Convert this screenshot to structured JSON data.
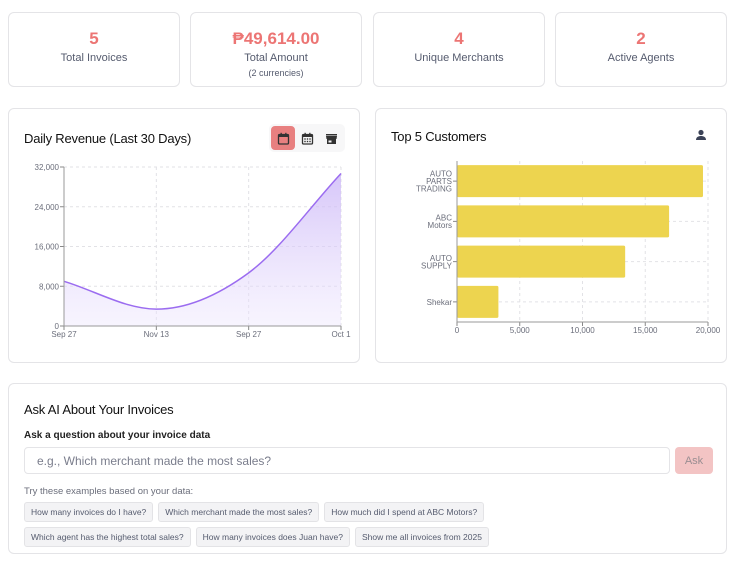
{
  "stats": [
    {
      "value": "5",
      "label": "Total Invoices"
    },
    {
      "value": "₱49,614.00",
      "label": "Total Amount",
      "sub": "(2 currencies)"
    },
    {
      "value": "4",
      "label": "Unique Merchants"
    },
    {
      "value": "2",
      "label": "Active Agents"
    }
  ],
  "revenue": {
    "title": "Daily Revenue (Last 30 Days)",
    "toggles": [
      {
        "icon": "calendar-day-icon",
        "active": true
      },
      {
        "icon": "calendar-month-icon",
        "active": false
      },
      {
        "icon": "store-icon",
        "active": false
      }
    ]
  },
  "customers": {
    "title": "Top 5 Customers",
    "icon": "user-icon"
  },
  "chart_data": [
    {
      "type": "area",
      "title": "Daily Revenue (Last 30 Days)",
      "categories": [
        "Sep 27",
        "Nov 13",
        "Sep 27",
        "Oct 1"
      ],
      "values": [
        9000,
        3400,
        10700,
        30700
      ],
      "ylim": [
        0,
        32000
      ],
      "yticks": [
        "0",
        "8,000",
        "16,000",
        "24,000",
        "32,000"
      ],
      "grid": true,
      "color": "#9b6cf0"
    },
    {
      "type": "bar",
      "orientation": "horizontal",
      "title": "Top 5 Customers",
      "categories": [
        "AUTO PARTS TRADING",
        "ABC Motors",
        "AUTO SUPPLY",
        "Shekar"
      ],
      "values": [
        19600,
        16900,
        13400,
        3300
      ],
      "xlim": [
        0,
        20000
      ],
      "xticks": [
        "0",
        "5,000",
        "10,000",
        "15,000",
        "20,000"
      ],
      "grid": true,
      "color": "#edd44f"
    }
  ],
  "ai": {
    "title": "Ask AI About Your Invoices",
    "label": "Ask a question about your invoice data",
    "placeholder": "e.g., Which merchant made the most sales?",
    "ask_label": "Ask",
    "examples_label": "Try these examples based on your data:",
    "examples": [
      "How many invoices do I have?",
      "Which merchant made the most sales?",
      "How much did I spend at ABC Motors?",
      "Which agent has the highest total sales?",
      "How many invoices does Juan have?",
      "Show me all invoices from 2025"
    ]
  },
  "colors": {
    "accent": "#ec7574",
    "line": "#9b6cf0",
    "bar": "#edd44f"
  }
}
